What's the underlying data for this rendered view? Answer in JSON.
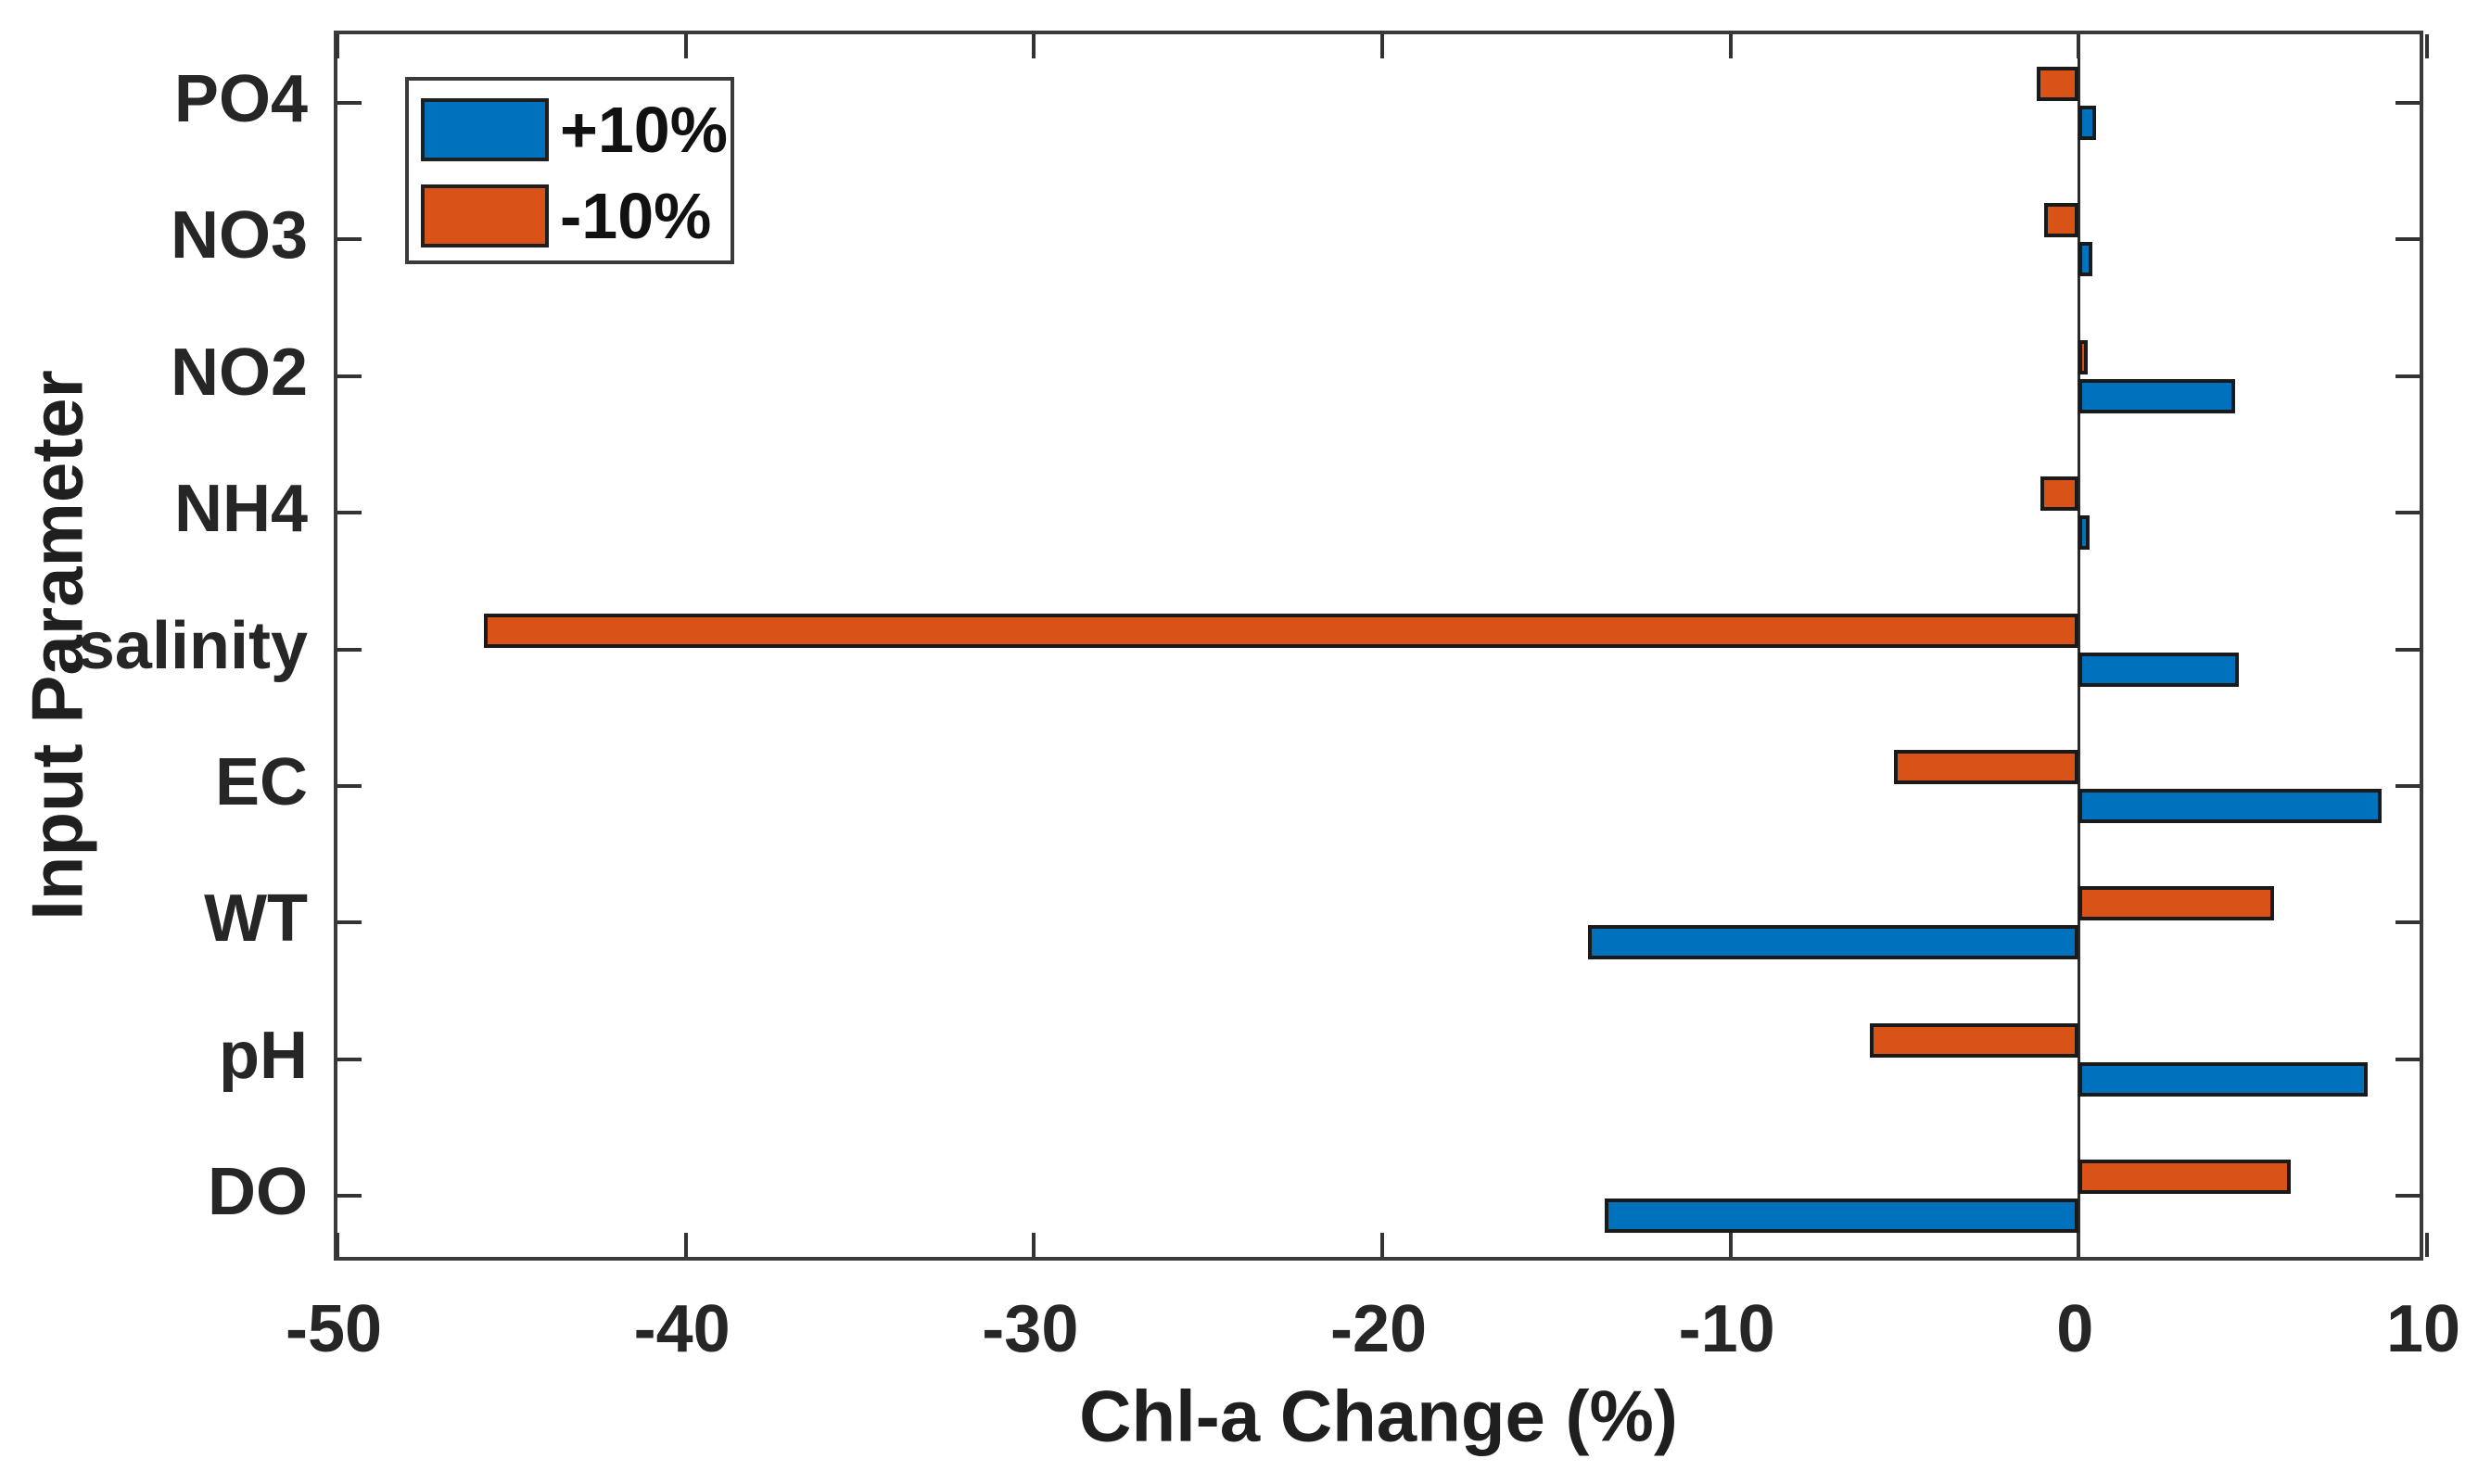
{
  "figure": {
    "background": "#ffffff",
    "axis_color": "#3a3a3a",
    "text_color": "#262626"
  },
  "chart_data": {
    "type": "bar",
    "orientation": "horizontal",
    "title": "",
    "xlabel": "Chl-a Change (%)",
    "ylabel": "Input Parameter",
    "categories": [
      "PO4",
      "NO3",
      "NO2",
      "NH4",
      "salinity",
      "EC",
      "WT",
      "pH",
      "DO"
    ],
    "series": [
      {
        "name": "+10%",
        "color": "#0072BD",
        "values": [
          0.5,
          0.4,
          4.5,
          0.3,
          4.6,
          8.7,
          -14.1,
          8.3,
          -13.6
        ]
      },
      {
        "name": "-10%",
        "color": "#D95319",
        "values": [
          -1.2,
          -1.0,
          0.25,
          -1.1,
          -45.8,
          -5.3,
          5.6,
          -6.0,
          6.1
        ]
      }
    ],
    "xlim": [
      -50,
      10
    ],
    "xticks": [
      -50,
      -40,
      -30,
      -20,
      -10,
      0,
      10
    ],
    "xtick_labels": [
      "-50",
      "-40",
      "-30",
      "-20",
      "-10",
      "0",
      "10"
    ],
    "grid": false,
    "legend_position": "top-left",
    "bar_edge_color": "#1a1a1a",
    "zero_line": true
  }
}
